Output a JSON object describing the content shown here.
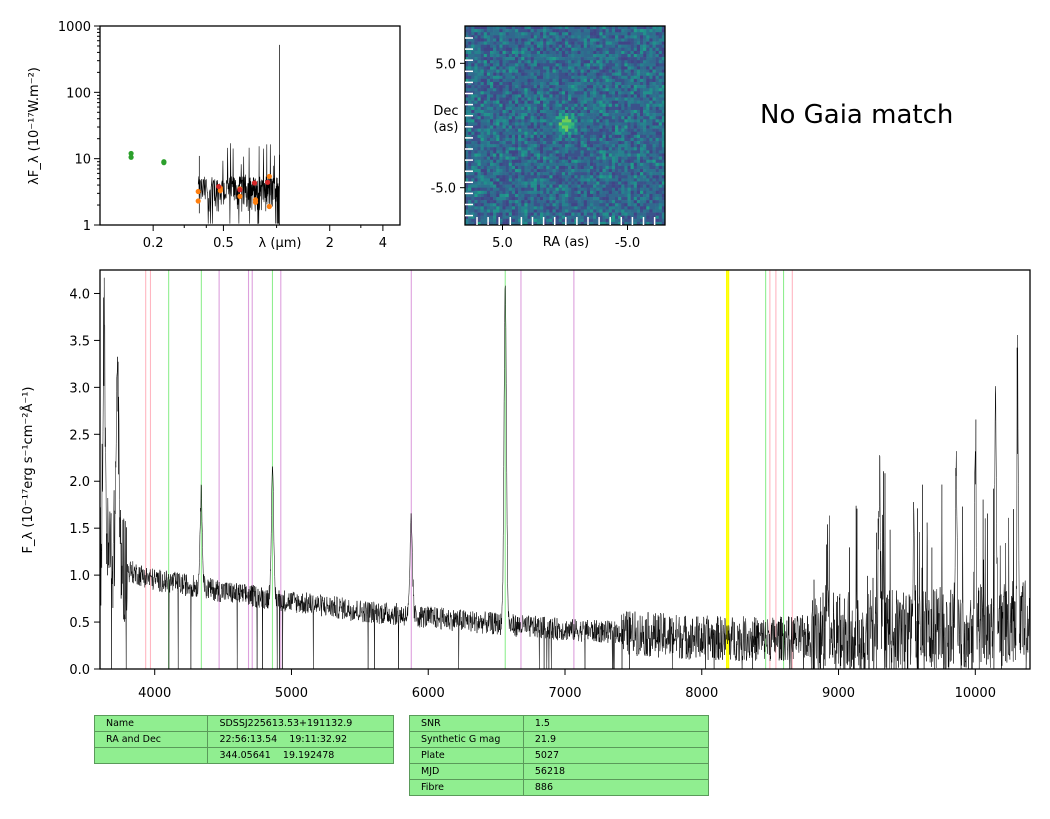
{
  "sed_panel": {
    "ylabel": "λF_λ (10⁻¹⁷W.m⁻²)",
    "xlabel": "λ (μm)",
    "x_ticks": [
      "0.2",
      "0.5",
      "2",
      "4"
    ],
    "y_ticks": [
      "1",
      "10",
      "100",
      "1000"
    ]
  },
  "image_panel": {
    "xlabel": "RA (as)",
    "ylabel": "Dec (as)",
    "x_ticks": [
      "5.0",
      "-5.0"
    ],
    "y_ticks": [
      "5.0",
      "-5.0"
    ]
  },
  "gaia_message": "No Gaia match",
  "spectrum_panel": {
    "ylabel": "F_λ (10⁻¹⁷erg s⁻¹cm⁻²Å⁻¹)",
    "x_ticks": [
      "4000",
      "5000",
      "6000",
      "7000",
      "8000",
      "9000",
      "10000"
    ],
    "y_ticks": [
      "0.0",
      "0.5",
      "1.0",
      "1.5",
      "2.0",
      "2.5",
      "3.0",
      "3.5",
      "4.0"
    ]
  },
  "table_left": {
    "rows": [
      [
        "Name",
        "SDSSJ225613.53+191132.9"
      ],
      [
        "RA and Dec",
        "22:56:13.54    19:11:32.92"
      ],
      [
        "",
        "344.05641    19.192478"
      ]
    ]
  },
  "table_right": {
    "rows": [
      [
        "SNR",
        "1.5"
      ],
      [
        "Synthetic G mag",
        "21.9"
      ],
      [
        "Plate",
        "5027"
      ],
      [
        "MJD",
        "56218"
      ],
      [
        "Fibre",
        "886"
      ]
    ]
  },
  "chart_data": [
    {
      "type": "scatter",
      "panel": "sed",
      "xlabel": "λ (μm)",
      "ylabel": "λF_λ (10⁻¹⁷W.m⁻²)",
      "x_scale": "log",
      "y_scale": "log",
      "xlim": [
        0.1,
        5.0
      ],
      "ylim": [
        1,
        1000
      ],
      "series": [
        {
          "color": "#2ca02c",
          "points": [
            [
              0.15,
              12.0
            ],
            [
              0.15,
              10.5
            ],
            [
              0.23,
              9.0
            ],
            [
              0.23,
              8.7
            ]
          ]
        },
        {
          "color": "#ff7f0e",
          "points": [
            [
              0.36,
              3.2
            ],
            [
              0.36,
              2.3
            ],
            [
              0.48,
              3.6
            ],
            [
              0.48,
              3.3
            ],
            [
              0.62,
              3.5
            ],
            [
              0.62,
              2.7
            ],
            [
              0.76,
              2.4
            ],
            [
              0.76,
              2.2
            ],
            [
              0.91,
              5.4
            ],
            [
              0.91,
              1.9
            ]
          ]
        },
        {
          "color": "#d62728",
          "points": [
            [
              0.47,
              3.8
            ],
            [
              0.62,
              3.4
            ],
            [
              0.75,
              4.3
            ],
            [
              0.89,
              4.4
            ]
          ]
        }
      ],
      "spectrum_trace": {
        "color": "#000000",
        "x_range_um": [
          0.36,
          1.04
        ],
        "typical": 3.5,
        "spike_um": 1.04,
        "spike_value": 520
      }
    },
    {
      "type": "heatmap",
      "panel": "image",
      "xlabel": "RA (as)",
      "ylabel": "Dec (as)",
      "colormap": "viridis",
      "xlim": [
        8,
        -8
      ],
      "ylim": [
        -8,
        8
      ],
      "source_position_as": [
        0,
        0.4
      ]
    },
    {
      "type": "line",
      "panel": "spectrum",
      "ylabel": "F_λ (10⁻¹⁷erg s⁻¹cm⁻²Å⁻¹)",
      "xlim": [
        3600,
        10400
      ],
      "ylim": [
        0.0,
        4.25
      ],
      "continuum": [
        [
          3600,
          1.2
        ],
        [
          3700,
          1.25
        ],
        [
          3800,
          1.05
        ],
        [
          4000,
          0.95
        ],
        [
          4300,
          0.88
        ],
        [
          4600,
          0.8
        ],
        [
          5000,
          0.72
        ],
        [
          5500,
          0.62
        ],
        [
          6000,
          0.55
        ],
        [
          6500,
          0.48
        ],
        [
          7000,
          0.42
        ],
        [
          7500,
          0.38
        ],
        [
          8000,
          0.33
        ],
        [
          8500,
          0.32
        ],
        [
          9000,
          0.35
        ],
        [
          9500,
          0.38
        ],
        [
          10000,
          0.45
        ],
        [
          10400,
          0.5
        ]
      ],
      "emission_lines": [
        [
          3630,
          3.6
        ],
        [
          3727,
          3.2
        ],
        [
          4340,
          1.85
        ],
        [
          4861,
          2.05
        ],
        [
          5876,
          1.55
        ],
        [
          6563,
          4.05
        ],
        [
          8919,
          1.2
        ],
        [
          9300,
          1.95
        ],
        [
          9550,
          1.5
        ],
        [
          9860,
          2.2
        ],
        [
          10000,
          2.35
        ],
        [
          10150,
          2.9
        ],
        [
          10310,
          2.8
        ]
      ],
      "vertical_lines": [
        {
          "x": 3934,
          "color": "#ffb6c1"
        },
        {
          "x": 3969,
          "color": "#ffb6c1"
        },
        {
          "x": 4102,
          "color": "#90ee90"
        },
        {
          "x": 4341,
          "color": "#90ee90"
        },
        {
          "x": 4471,
          "color": "#dda0dd"
        },
        {
          "x": 4686,
          "color": "#dda0dd"
        },
        {
          "x": 4713,
          "color": "#dda0dd"
        },
        {
          "x": 4861,
          "color": "#90ee90"
        },
        {
          "x": 4922,
          "color": "#dda0dd"
        },
        {
          "x": 5876,
          "color": "#dda0dd"
        },
        {
          "x": 6563,
          "color": "#90ee90"
        },
        {
          "x": 6678,
          "color": "#dda0dd"
        },
        {
          "x": 7065,
          "color": "#dda0dd"
        },
        {
          "x": 8183,
          "color": "#ffff00"
        },
        {
          "x": 8195,
          "color": "#ffff00"
        },
        {
          "x": 8467,
          "color": "#90ee90"
        },
        {
          "x": 8498,
          "color": "#ffb6c1"
        },
        {
          "x": 8542,
          "color": "#ffb6c1"
        },
        {
          "x": 8598,
          "color": "#90ee90"
        },
        {
          "x": 8662,
          "color": "#ffb6c1"
        }
      ],
      "color": "#000000"
    }
  ]
}
